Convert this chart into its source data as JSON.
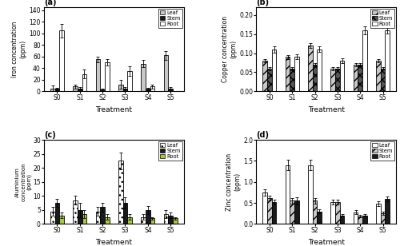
{
  "iron": {
    "title": "(a)",
    "ylabel": "Iron concentration\n(ppm)",
    "xlabel": "Treatment",
    "categories": [
      "S0",
      "S1",
      "S2",
      "S3",
      "S4",
      "S5"
    ],
    "leaf": [
      5,
      8,
      55,
      12,
      48,
      62
    ],
    "stem": [
      4,
      5,
      3,
      5,
      4,
      5
    ],
    "root": [
      105,
      30,
      50,
      35,
      8,
      0
    ],
    "leaf_err": [
      5,
      4,
      5,
      8,
      6,
      8
    ],
    "stem_err": [
      2,
      2,
      2,
      2,
      2,
      2
    ],
    "root_err": [
      12,
      8,
      6,
      8,
      3,
      0
    ],
    "ylim": [
      0,
      145
    ],
    "yticks": [
      0,
      20,
      40,
      60,
      80,
      100,
      120,
      140
    ]
  },
  "copper": {
    "title": "(b)",
    "ylabel": "Copper concentration\n(ppm)",
    "xlabel": "Treatment",
    "categories": [
      "S0",
      "S1",
      "S2",
      "S3",
      "S4",
      "S5"
    ],
    "leaf": [
      0.08,
      0.09,
      0.12,
      0.06,
      0.07,
      0.08
    ],
    "stem": [
      0.06,
      0.06,
      0.07,
      0.06,
      0.07,
      0.06
    ],
    "root": [
      0.11,
      0.09,
      0.11,
      0.08,
      0.16,
      0.16
    ],
    "leaf_err": [
      0.005,
      0.005,
      0.006,
      0.004,
      0.004,
      0.005
    ],
    "stem_err": [
      0.004,
      0.004,
      0.004,
      0.003,
      0.004,
      0.003
    ],
    "root_err": [
      0.008,
      0.006,
      0.007,
      0.006,
      0.01,
      0.008
    ],
    "ylim": [
      0,
      0.22
    ],
    "yticks": [
      0,
      0.05,
      0.1,
      0.15,
      0.2
    ]
  },
  "aluminium": {
    "title": "(c)",
    "ylabel": "Aluminium\nconcentration\n(ppm)",
    "xlabel": "Treatment",
    "categories": [
      "S0",
      "S1",
      "S2",
      "S3",
      "S4",
      "S5"
    ],
    "leaf": [
      4.5,
      8.5,
      4.5,
      22.5,
      2.5,
      3.5
    ],
    "stem": [
      7.5,
      5.0,
      6.0,
      7.5,
      5.0,
      3.0
    ],
    "root": [
      3.0,
      3.5,
      2.5,
      2.5,
      2.0,
      2.0
    ],
    "leaf_err": [
      1.5,
      1.5,
      1.5,
      3.0,
      1.0,
      1.5
    ],
    "stem_err": [
      1.5,
      2.5,
      1.5,
      2.0,
      1.5,
      1.0
    ],
    "root_err": [
      1.0,
      1.5,
      1.0,
      1.0,
      0.5,
      0.5
    ],
    "ylim": [
      0,
      30
    ],
    "yticks": [
      0,
      5,
      10,
      15,
      20,
      25,
      30
    ]
  },
  "zinc": {
    "title": "(d)",
    "ylabel": "Zinc concentration\n(ppm)",
    "xlabel": "Treatment",
    "categories": [
      "S0",
      "S1",
      "S2",
      "S3",
      "S4",
      "S5"
    ],
    "leaf": [
      0.75,
      1.4,
      1.4,
      0.52,
      0.28,
      0.48
    ],
    "stem": [
      0.62,
      0.55,
      0.55,
      0.52,
      0.18,
      0.25
    ],
    "root": [
      0.52,
      0.55,
      0.3,
      0.2,
      0.2,
      0.6
    ],
    "leaf_err": [
      0.08,
      0.12,
      0.12,
      0.05,
      0.04,
      0.06
    ],
    "stem_err": [
      0.06,
      0.06,
      0.06,
      0.05,
      0.03,
      0.04
    ],
    "root_err": [
      0.05,
      0.08,
      0.04,
      0.03,
      0.03,
      0.06
    ],
    "ylim": [
      0,
      2.0
    ],
    "yticks": [
      0,
      0.5,
      1.0,
      1.5,
      2.0
    ]
  },
  "bar_width": 0.2
}
